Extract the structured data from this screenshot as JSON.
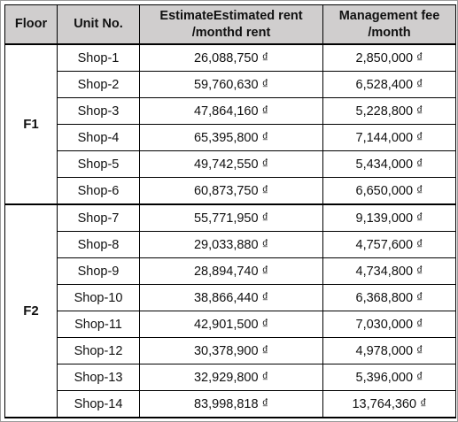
{
  "table": {
    "headers": {
      "floor": "Floor",
      "unit": "Unit No.",
      "rent_line1": "EstimateEstimated rent",
      "rent_line2": "/monthd rent",
      "fee_line1": "Management fee",
      "fee_line2": "/month"
    },
    "groups": [
      {
        "floor": "F1",
        "rows": [
          {
            "unit": "Shop-1",
            "rent": "26,088,750 ₫",
            "fee": "2,850,000 ₫"
          },
          {
            "unit": "Shop-2",
            "rent": "59,760,630 ₫",
            "fee": "6,528,400 ₫"
          },
          {
            "unit": "Shop-3",
            "rent": "47,864,160 ₫",
            "fee": "5,228,800 ₫"
          },
          {
            "unit": "Shop-4",
            "rent": "65,395,800 ₫",
            "fee": "7,144,000 ₫"
          },
          {
            "unit": "Shop-5",
            "rent": "49,742,550 ₫",
            "fee": "5,434,000 ₫"
          },
          {
            "unit": "Shop-6",
            "rent": "60,873,750 ₫",
            "fee": "6,650,000 ₫"
          }
        ]
      },
      {
        "floor": "F2",
        "rows": [
          {
            "unit": "Shop-7",
            "rent": "55,771,950 ₫",
            "fee": "9,139,000 ₫"
          },
          {
            "unit": "Shop-8",
            "rent": "29,033,880 ₫",
            "fee": "4,757,600 ₫"
          },
          {
            "unit": "Shop-9",
            "rent": "28,894,740 ₫",
            "fee": "4,734,800 ₫"
          },
          {
            "unit": "Shop-10",
            "rent": "38,866,440 ₫",
            "fee": "6,368,800 ₫"
          },
          {
            "unit": "Shop-11",
            "rent": "42,901,500 ₫",
            "fee": "7,030,000 ₫"
          },
          {
            "unit": "Shop-12",
            "rent": "30,378,900 ₫",
            "fee": "4,978,000 ₫"
          },
          {
            "unit": "Shop-13",
            "rent": "32,929,800 ₫",
            "fee": "5,396,000 ₫"
          },
          {
            "unit": "Shop-14",
            "rent": "83,998,818 ₫",
            "fee": "13,764,360 ₫"
          }
        ]
      }
    ]
  }
}
